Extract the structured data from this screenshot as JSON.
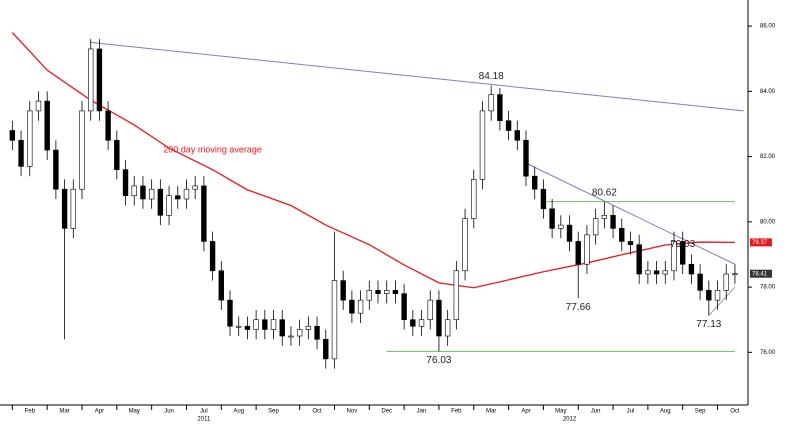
{
  "chart_data": {
    "type": "candlestick",
    "xlim": [
      -0.5,
      84.5
    ],
    "ylim": [
      74.6,
      86.8
    ],
    "xticks": [
      {
        "value": 2,
        "label": "Feb"
      },
      {
        "value": 6,
        "label": "Mar"
      },
      {
        "value": 10,
        "label": "Apr"
      },
      {
        "value": 14,
        "label": "May"
      },
      {
        "value": 18,
        "label": "Jun"
      },
      {
        "value": 22,
        "label": "Jul"
      },
      {
        "value": 26,
        "label": "Aug"
      },
      {
        "value": 30,
        "label": "Sep"
      },
      {
        "value": 35,
        "label": "Oct"
      },
      {
        "value": 39,
        "label": "Nov"
      },
      {
        "value": 43,
        "label": "Dec"
      },
      {
        "value": 47,
        "label": "Jan"
      },
      {
        "value": 51,
        "label": "Feb"
      },
      {
        "value": 55,
        "label": "Mar"
      },
      {
        "value": 59,
        "label": "Apr"
      },
      {
        "value": 63,
        "label": "May"
      },
      {
        "value": 67,
        "label": "Jun"
      },
      {
        "value": 71,
        "label": "Jul"
      },
      {
        "value": 75,
        "label": "Aug"
      },
      {
        "value": 79,
        "label": "Sep"
      },
      {
        "value": 83,
        "label": "Oct"
      }
    ],
    "year_ticks": [
      {
        "value": 22,
        "label": "2011"
      },
      {
        "value": 64,
        "label": "2012"
      }
    ],
    "yticks": [
      {
        "value": 76,
        "label": "76.00"
      },
      {
        "value": 78,
        "label": "78.00"
      },
      {
        "value": 80,
        "label": "80.00"
      },
      {
        "value": 82,
        "label": "82.00"
      },
      {
        "value": 84,
        "label": "84.00"
      },
      {
        "value": 86,
        "label": "86.00"
      }
    ],
    "open": [
      82.8,
      82.5,
      81.7,
      83.4,
      83.7,
      82.2,
      81.0,
      79.8,
      81.0,
      83.4,
      85.3,
      83.4,
      82.5,
      81.6,
      80.8,
      81.1,
      80.7,
      81.0,
      80.2,
      80.8,
      80.7,
      81.0,
      81.1,
      79.4,
      78.5,
      77.6,
      76.8,
      76.8,
      76.7,
      77.0,
      76.7,
      77.0,
      76.5,
      76.5,
      76.7,
      76.8,
      76.4,
      75.8,
      78.2,
      77.6,
      77.2,
      77.6,
      77.9,
      77.8,
      77.9,
      77.8,
      77.0,
      76.8,
      77.0,
      77.6,
      76.5,
      77.0,
      78.5,
      80.1,
      81.3,
      83.4,
      83.9,
      83.1,
      82.8,
      82.5,
      81.4,
      81.0,
      80.4,
      79.8,
      79.9,
      79.4,
      78.7,
      79.6,
      80.1,
      80.2,
      79.8,
      79.4,
      79.3,
      78.4,
      78.5,
      78.4,
      78.5,
      79.4,
      78.7,
      78.4,
      77.9,
      77.6,
      77.9,
      78.4
    ],
    "high": [
      83.1,
      82.8,
      83.7,
      84.0,
      84.0,
      82.5,
      81.3,
      81.3,
      83.7,
      85.6,
      85.6,
      83.7,
      82.8,
      81.9,
      81.4,
      81.4,
      81.3,
      81.3,
      81.1,
      81.1,
      81.3,
      81.4,
      81.4,
      79.7,
      78.8,
      77.9,
      77.1,
      77.1,
      77.3,
      77.3,
      77.3,
      77.3,
      76.8,
      77.0,
      77.1,
      77.1,
      76.7,
      79.7,
      78.5,
      77.9,
      77.9,
      78.2,
      78.2,
      78.2,
      78.2,
      78.1,
      77.3,
      77.3,
      77.9,
      77.9,
      77.3,
      78.8,
      80.4,
      81.6,
      83.7,
      84.18,
      84.1,
      83.4,
      83.1,
      82.8,
      81.7,
      81.3,
      80.7,
      80.2,
      80.2,
      79.7,
      79.9,
      80.4,
      80.62,
      80.5,
      80.1,
      79.7,
      79.6,
      78.8,
      78.8,
      78.8,
      79.7,
      79.7,
      79.0,
      78.7,
      78.2,
      78.2,
      78.7,
      78.7
    ],
    "low": [
      82.2,
      81.4,
      81.4,
      83.1,
      81.9,
      80.7,
      76.4,
      79.5,
      80.7,
      83.1,
      83.1,
      82.2,
      81.3,
      80.5,
      80.5,
      80.4,
      80.4,
      79.9,
      79.9,
      80.4,
      80.4,
      80.7,
      79.1,
      78.2,
      77.3,
      76.5,
      76.5,
      76.4,
      76.4,
      76.4,
      76.4,
      76.2,
      76.2,
      76.2,
      76.4,
      76.1,
      75.5,
      75.5,
      77.3,
      76.9,
      76.9,
      77.3,
      77.5,
      77.5,
      77.5,
      76.7,
      76.5,
      76.5,
      76.7,
      76.03,
      76.2,
      76.7,
      78.2,
      79.8,
      81.0,
      83.1,
      82.8,
      82.5,
      82.2,
      81.1,
      80.7,
      80.1,
      79.5,
      79.5,
      79.1,
      77.66,
      78.4,
      79.3,
      79.8,
      79.5,
      79.1,
      79.0,
      78.1,
      78.1,
      78.1,
      78.1,
      78.2,
      78.4,
      78.1,
      77.6,
      77.13,
      77.3,
      77.6,
      78.1
    ],
    "close": [
      82.5,
      81.7,
      83.4,
      83.7,
      82.2,
      81.0,
      79.8,
      81.0,
      83.4,
      85.3,
      83.4,
      82.5,
      81.6,
      80.8,
      81.1,
      80.7,
      81.0,
      80.2,
      80.8,
      80.7,
      81.0,
      81.1,
      79.4,
      78.5,
      77.6,
      76.8,
      76.8,
      76.7,
      77.0,
      76.7,
      77.0,
      76.5,
      76.5,
      76.7,
      76.8,
      76.4,
      75.8,
      78.2,
      77.6,
      77.2,
      77.6,
      77.9,
      77.8,
      77.9,
      77.8,
      77.0,
      76.8,
      77.0,
      77.6,
      76.5,
      77.0,
      78.5,
      80.1,
      81.3,
      83.4,
      83.9,
      83.1,
      82.8,
      82.5,
      81.4,
      81.0,
      80.4,
      79.8,
      79.9,
      79.4,
      78.7,
      79.6,
      80.1,
      80.2,
      79.8,
      79.4,
      79.3,
      78.4,
      78.5,
      78.4,
      78.5,
      79.4,
      78.7,
      78.4,
      77.9,
      77.6,
      77.9,
      78.4,
      78.41
    ],
    "moving_average": {
      "name": "200 day moving average",
      "color": "#e8191c",
      "x": [
        0,
        4,
        9,
        14,
        18,
        23,
        27,
        32,
        36,
        41,
        45,
        49,
        53,
        56,
        61,
        66,
        70,
        75,
        79,
        83
      ],
      "values": [
        85.8,
        84.65,
        83.73,
        82.97,
        82.26,
        81.6,
        80.98,
        80.5,
        79.9,
        79.3,
        78.68,
        78.13,
        77.98,
        78.16,
        78.47,
        78.74,
        78.99,
        79.29,
        79.38,
        79.37
      ]
    },
    "lines": [
      {
        "x": [
          9,
          84
        ],
        "y": [
          85.5,
          83.4
        ],
        "color": "#7b7fc4"
      },
      {
        "x": [
          59,
          83
        ],
        "y": [
          81.8,
          78.7
        ],
        "color": "#7b7fc4"
      },
      {
        "x": [
          80,
          83
        ],
        "y": [
          77.13,
          78.0
        ],
        "color": "#9a9a9a"
      },
      {
        "x": [
          61,
          83
        ],
        "y": [
          80.62,
          80.62
        ],
        "color": "#6dbb5f"
      },
      {
        "x": [
          43,
          83
        ],
        "y": [
          76.03,
          76.03
        ],
        "color": "#6dbb5f"
      }
    ],
    "annotations": [
      {
        "text": "84.18",
        "x": 55,
        "y": 84.18,
        "position": "above"
      },
      {
        "text": "80.62",
        "x": 68,
        "y": 80.62,
        "position": "above"
      },
      {
        "text": "79.03",
        "x": 77,
        "y": 79.03,
        "position": "above"
      },
      {
        "text": "77.66",
        "x": 65,
        "y": 77.66,
        "position": "below"
      },
      {
        "text": "77.13",
        "x": 80,
        "y": 77.13,
        "position": "below"
      },
      {
        "text": "76.03",
        "x": 49,
        "y": 76.03,
        "position": "below"
      },
      {
        "text": "200 day moving average",
        "x": 23,
        "y": 82.2,
        "position": "center",
        "color": "#e8191c"
      }
    ],
    "last_labels": [
      {
        "value": 79.37,
        "label": "79.37",
        "color": "#e8191c"
      },
      {
        "value": 78.41,
        "label": "78.41",
        "color": "#333333"
      }
    ]
  }
}
